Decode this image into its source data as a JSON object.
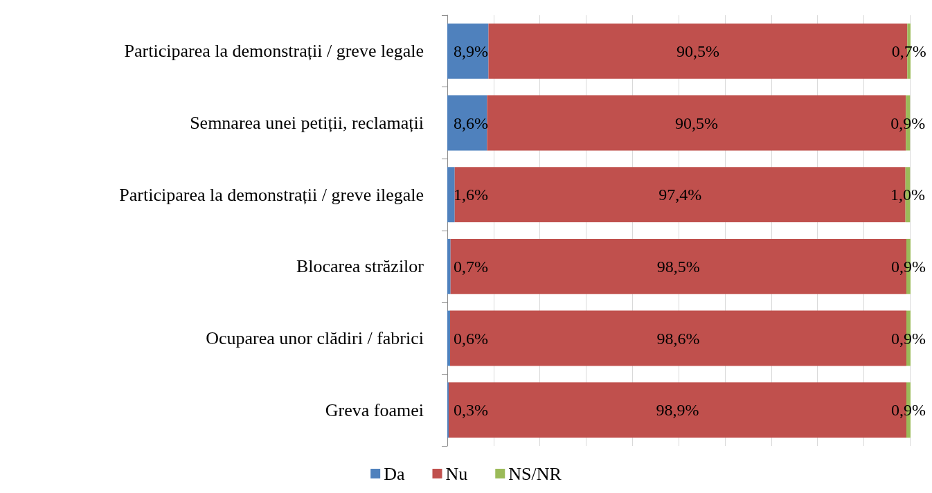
{
  "chart_data": {
    "type": "bar",
    "orientation": "horizontal",
    "stacked": true,
    "categories": [
      "Participarea la demonstrații / greve legale",
      "Semnarea unei petiții, reclamații",
      "Participarea la demonstrații / greve ilegale",
      "Blocarea străzilor",
      "Ocuparea unor clădiri / fabrici",
      "Greva foamei"
    ],
    "series": [
      {
        "name": "Da",
        "color": "#4f81bd",
        "values": [
          8.9,
          8.6,
          1.6,
          0.7,
          0.6,
          0.3
        ],
        "value_labels": [
          "8,9%",
          "8,6%",
          "1,6%",
          "0,7%",
          "0,6%",
          "0,3%"
        ]
      },
      {
        "name": "Nu",
        "color": "#c0504d",
        "values": [
          90.5,
          90.5,
          97.4,
          98.5,
          98.6,
          98.9
        ],
        "value_labels": [
          "90,5%",
          "90,5%",
          "97,4%",
          "98,5%",
          "98,6%",
          "98,9%"
        ]
      },
      {
        "name": "NS/NR",
        "color": "#9bbb59",
        "values": [
          0.7,
          0.9,
          1.0,
          0.9,
          0.9,
          0.9
        ],
        "value_labels": [
          "0,7%",
          "0,9%",
          "1,0%",
          "0,9%",
          "0,9%",
          "0,9%"
        ]
      }
    ],
    "xlim": [
      0,
      100.1
    ],
    "xticks": [
      {
        "value": 0,
        "label": null
      },
      {
        "value": 10,
        "label": null
      },
      {
        "value": 20,
        "label": null
      },
      {
        "value": 30,
        "label": null
      },
      {
        "value": 40,
        "label": null
      },
      {
        "value": 50,
        "label": null
      },
      {
        "value": 60,
        "label": null
      },
      {
        "value": 70,
        "label": null
      },
      {
        "value": 80,
        "label": null
      },
      {
        "value": 90,
        "label": null
      },
      {
        "value": 100,
        "label": null
      }
    ],
    "tick_labels": "y",
    "grid": "x",
    "legend": "bottom"
  }
}
